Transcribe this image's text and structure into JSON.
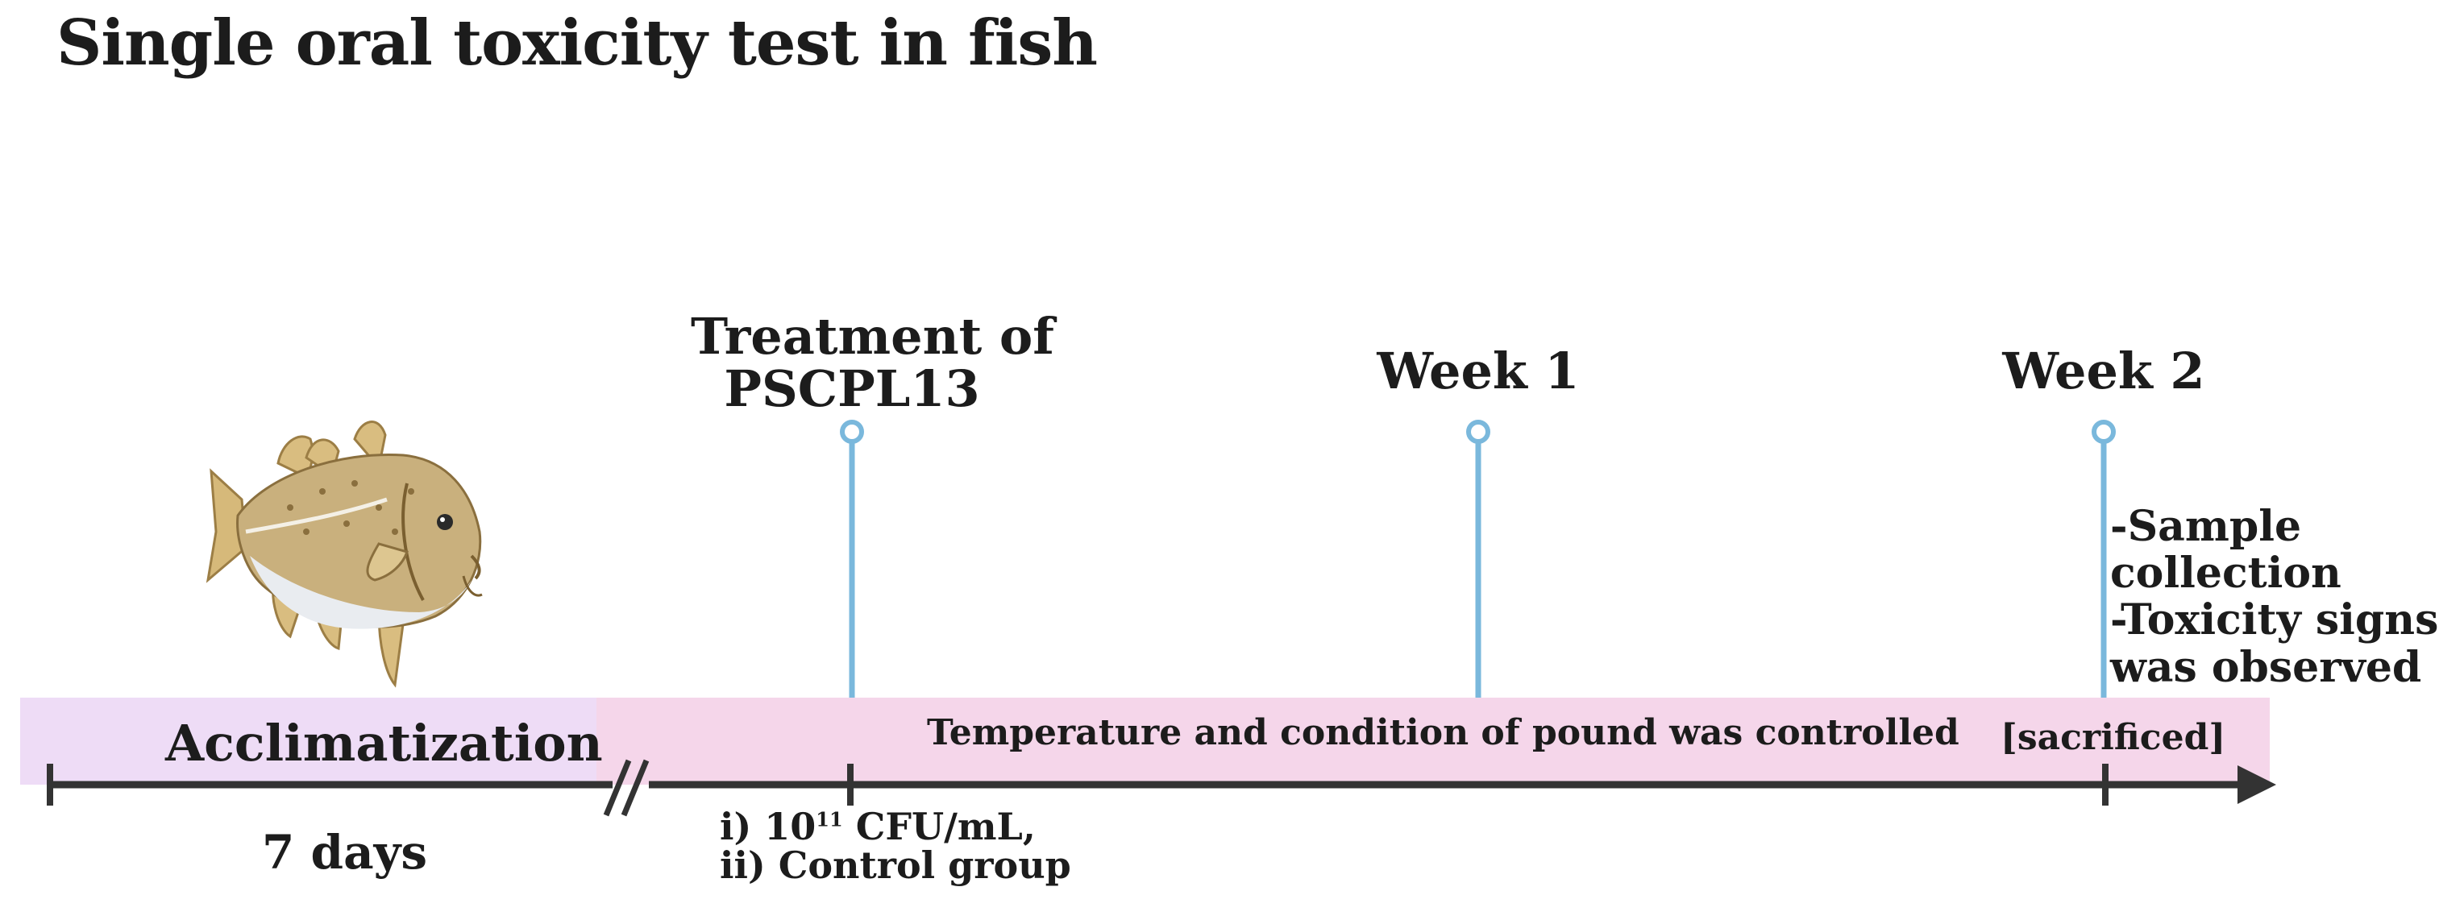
{
  "title": "Single oral toxicity test in fish",
  "phases": {
    "acclimatization": "Acclimatization",
    "controlled": "Temperature and condition of pound was controlled",
    "sacrificed": "[sacrificed]"
  },
  "durations": {
    "acclimatization": "7 days"
  },
  "milestones": [
    {
      "label_line1": "Treatment of",
      "label_line2": "PSCPL13"
    },
    {
      "label_line1": "Week 1",
      "label_line2": ""
    },
    {
      "label_line1": "Week 2",
      "label_line2": ""
    }
  ],
  "treatment_groups": {
    "line1_prefix": "i) 10",
    "line1_exponent": "11",
    "line1_suffix": " CFU/mL,",
    "line2": "ii) Control group"
  },
  "week2_notes": [
    "-Sample",
    "collection",
    "-Toxicity signs",
    "was observed"
  ],
  "colors": {
    "milestone_line": "#7ab8dc",
    "axis": "#333333",
    "accl_band": "#eedcf6",
    "main_band": "#f5d6ea"
  },
  "icons": {
    "fish": "cod-fish-illustration",
    "break": "axis-break-icon",
    "arrow": "arrow-head-icon"
  }
}
